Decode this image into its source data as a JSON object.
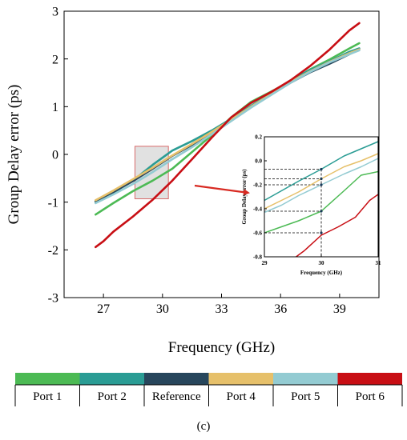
{
  "panel_label": "(c)",
  "colors": {
    "Port 1": "#4cba54",
    "Port 2": "#2a9c94",
    "Reference": "#27465c",
    "Port 4": "#e6c06a",
    "Port 5": "#93cbd2",
    "Port 6": "#c80e14",
    "arrow": "#d82a22",
    "highlight": "#c8c8c8"
  },
  "chart_data": [
    {
      "type": "line",
      "title": "",
      "xlabel": "Frequency (GHz)",
      "ylabel": "Group Delay error (ps)",
      "xlim": [
        25,
        41
      ],
      "ylim": [
        -3,
        3
      ],
      "xticks": [
        "27",
        "30",
        "33",
        "36",
        "39"
      ],
      "xtick_values": [
        27,
        30,
        33,
        36,
        39
      ],
      "yticks": [
        "-3",
        "-2",
        "-1",
        "0",
        "1",
        "2",
        "3"
      ],
      "ytick_values": [
        -3,
        -2,
        -1,
        0,
        1,
        2,
        3
      ],
      "grid": false,
      "legend": "bottom",
      "highlight_box": {
        "x": [
          28.6,
          30.3
        ],
        "y": [
          -0.93,
          0.17
        ]
      },
      "series": [
        {
          "name": "Port 1",
          "x": [
            26.6,
            27.5,
            28.5,
            29.5,
            30.5,
            31.5,
            32.5,
            33.5,
            34.5,
            35.5,
            36.5,
            37.5,
            38.5,
            39.5,
            40.0
          ],
          "y": [
            -1.26,
            -1.02,
            -0.77,
            -0.55,
            -0.3,
            0.05,
            0.4,
            0.78,
            1.1,
            1.31,
            1.53,
            1.78,
            1.99,
            2.22,
            2.33
          ]
        },
        {
          "name": "Port 2",
          "x": [
            26.6,
            27.5,
            28.5,
            29.5,
            30.5,
            31.5,
            32.5,
            33.5,
            34.5,
            35.5,
            36.5,
            37.5,
            38.5,
            39.5,
            40.0
          ],
          "y": [
            -1.0,
            -0.8,
            -0.55,
            -0.22,
            0.08,
            0.28,
            0.5,
            0.75,
            1.02,
            1.27,
            1.55,
            1.77,
            1.95,
            2.15,
            2.22
          ]
        },
        {
          "name": "Reference",
          "x": [
            26.6,
            27.5,
            28.5,
            29.5,
            30.5,
            31.5,
            32.5,
            33.5,
            34.5,
            35.5,
            36.5,
            37.5,
            38.5,
            39.5,
            40.0
          ],
          "y": [
            -0.98,
            -0.79,
            -0.56,
            -0.3,
            -0.03,
            0.2,
            0.45,
            0.72,
            1.0,
            1.25,
            1.5,
            1.72,
            1.9,
            2.1,
            2.2
          ]
        },
        {
          "name": "Port 4",
          "x": [
            26.6,
            27.5,
            28.5,
            29.5,
            30.5,
            31.5,
            32.5,
            33.5,
            34.5,
            35.5,
            36.5,
            37.5,
            38.5,
            39.5,
            40.0
          ],
          "y": [
            -0.96,
            -0.76,
            -0.52,
            -0.28,
            -0.02,
            0.22,
            0.47,
            0.73,
            1.0,
            1.26,
            1.52,
            1.74,
            1.94,
            2.12,
            2.2
          ]
        },
        {
          "name": "Port 5",
          "x": [
            26.6,
            27.5,
            28.5,
            29.5,
            30.5,
            31.5,
            32.5,
            33.5,
            34.5,
            35.5,
            36.5,
            37.5,
            38.5,
            39.5,
            40.0
          ],
          "y": [
            -1.02,
            -0.84,
            -0.62,
            -0.37,
            -0.1,
            0.15,
            0.42,
            0.7,
            0.98,
            1.24,
            1.5,
            1.73,
            1.93,
            2.1,
            2.18
          ]
        },
        {
          "name": "Port 6",
          "x": [
            26.6,
            27.0,
            27.5,
            28.5,
            29.5,
            30.5,
            31.5,
            32.5,
            33.5,
            34.5,
            35.5,
            36.5,
            37.5,
            38.5,
            39.5,
            40.0
          ],
          "y": [
            -1.94,
            -1.82,
            -1.62,
            -1.3,
            -0.95,
            -0.55,
            -0.1,
            0.35,
            0.78,
            1.08,
            1.3,
            1.55,
            1.85,
            2.2,
            2.6,
            2.75
          ]
        }
      ]
    },
    {
      "type": "line",
      "title": "",
      "xlabel": "Frequency (GHz)",
      "ylabel": "Group Delay error (ps)",
      "xlim": [
        29,
        31
      ],
      "ylim": [
        -0.8,
        0.2
      ],
      "xticks": [
        "29",
        "30",
        "31"
      ],
      "xtick_values": [
        29,
        30,
        31
      ],
      "yticks": [
        "-0.8",
        "-0.6",
        "-0.4",
        "-0.2",
        "0.0",
        "0.2"
      ],
      "ytick_values": [
        -0.8,
        -0.6,
        -0.4,
        -0.2,
        0.0,
        0.2
      ],
      "grid": false,
      "marked_x": 30,
      "marked_points": [
        -0.07,
        -0.15,
        -0.2,
        -0.42,
        -0.6
      ],
      "series": [
        {
          "name": "Port 1",
          "x": [
            29.0,
            29.3,
            29.6,
            30.0,
            30.4,
            30.7,
            31.0
          ],
          "y": [
            -0.6,
            -0.55,
            -0.5,
            -0.42,
            -0.25,
            -0.12,
            -0.09
          ]
        },
        {
          "name": "Port 2",
          "x": [
            29.0,
            29.3,
            29.6,
            30.0,
            30.4,
            30.7,
            31.0
          ],
          "y": [
            -0.33,
            -0.25,
            -0.17,
            -0.07,
            0.04,
            0.1,
            0.16
          ]
        },
        {
          "name": "Port 4",
          "x": [
            29.0,
            29.3,
            29.6,
            30.0,
            30.4,
            30.7,
            31.0
          ],
          "y": [
            -0.4,
            -0.33,
            -0.26,
            -0.15,
            -0.05,
            0.0,
            0.06
          ]
        },
        {
          "name": "Port 5",
          "x": [
            29.0,
            29.3,
            29.6,
            30.0,
            30.4,
            30.7,
            31.0
          ],
          "y": [
            -0.43,
            -0.37,
            -0.29,
            -0.2,
            -0.11,
            -0.05,
            0.02
          ]
        },
        {
          "name": "Port 6",
          "x": [
            29.5,
            29.7,
            30.0,
            30.3,
            30.6,
            30.85,
            31.0
          ],
          "y": [
            -0.82,
            -0.75,
            -0.62,
            -0.55,
            -0.47,
            -0.33,
            -0.28
          ]
        }
      ]
    }
  ]
}
